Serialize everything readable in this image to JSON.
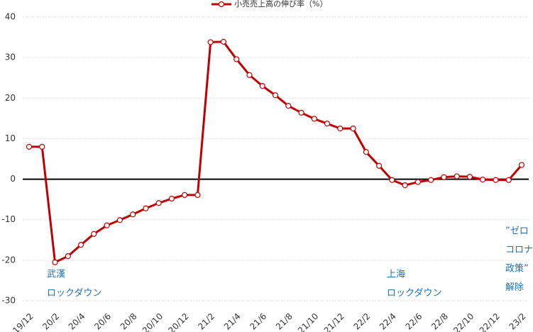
{
  "chart_data": {
    "type": "line",
    "categories": [
      "19/12",
      null,
      "20/2",
      null,
      "20/4",
      null,
      "20/6",
      null,
      "20/8",
      null,
      "20/10",
      null,
      "20/12",
      null,
      "21/2",
      null,
      "21/4",
      null,
      "21/6",
      null,
      "21/8",
      null,
      "21/10",
      null,
      "21/12",
      null,
      "22/2",
      null,
      "22/4",
      null,
      "22/6",
      null,
      "22/8",
      null,
      "22/10",
      null,
      "22/12",
      null,
      "23/2"
    ],
    "series": [
      {
        "name": "小売売上高の伸び率（%）",
        "color": "#c00000",
        "values": [
          8,
          8,
          -20.5,
          -19,
          -16.2,
          -13.5,
          -11.4,
          -10.1,
          -8.7,
          -7.2,
          -5.9,
          -4.8,
          -3.9,
          -3.9,
          33.8,
          33.9,
          29.6,
          25.7,
          23.0,
          20.7,
          18.1,
          16.4,
          14.9,
          13.7,
          12.5,
          12.5,
          6.7,
          3.3,
          -0.2,
          -1.5,
          -0.7,
          -0.2,
          0.5,
          0.7,
          0.6,
          -0.1,
          -0.2,
          -0.2,
          3.5
        ]
      }
    ],
    "ylim": [
      -30,
      40
    ],
    "yticks": [
      -30,
      -20,
      -10,
      0,
      10,
      20,
      30,
      40
    ],
    "grid": true,
    "legend": "top",
    "annotations": [
      {
        "lines": [
          "武漢",
          "ロックダウン"
        ]
      },
      {
        "lines": [
          "上海",
          "ロックダウン"
        ]
      },
      {
        "lines": [
          "”ゼロ",
          "コロナ",
          "政策”",
          "解除"
        ]
      }
    ]
  }
}
